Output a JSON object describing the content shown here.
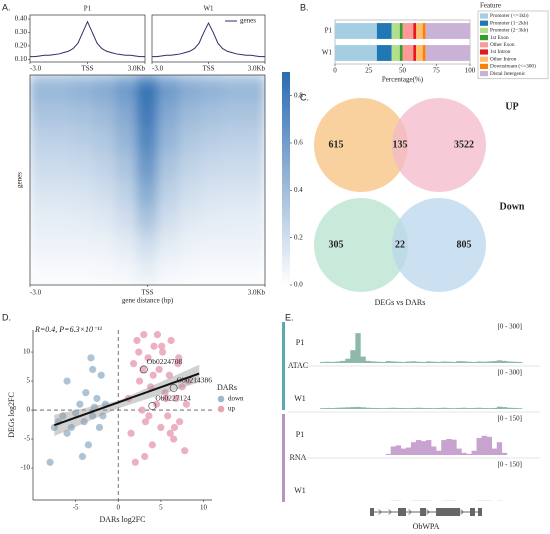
{
  "chart_data": [
    {
      "type": "line",
      "panel_label": "A.",
      "title": "P1",
      "x": [
        -3,
        -2.75,
        -2.5,
        -2.25,
        -2,
        -1.75,
        -1.5,
        -1.25,
        -1,
        -0.75,
        -0.5,
        -0.25,
        0,
        0.25,
        0.5,
        0.75,
        1,
        1.25,
        1.5,
        1.75,
        2,
        2.25,
        2.5,
        2.75,
        3
      ],
      "values": [
        0.12,
        0.12,
        0.125,
        0.13,
        0.13,
        0.135,
        0.14,
        0.15,
        0.16,
        0.18,
        0.22,
        0.3,
        0.38,
        0.3,
        0.22,
        0.18,
        0.16,
        0.15,
        0.14,
        0.135,
        0.13,
        0.13,
        0.125,
        0.12,
        0.12
      ],
      "color": "#2b2f6b",
      "xlim": [
        -3,
        3
      ],
      "xticks": [
        {
          "value": -3,
          "label": "-3.0"
        },
        {
          "value": 0,
          "label": "TSS"
        },
        {
          "value": 3,
          "label": "3.0Kb"
        }
      ],
      "ylim": [
        0.08,
        0.43
      ],
      "yticks": [
        {
          "value": 0.1,
          "label": "0.10"
        },
        {
          "value": 0.2,
          "label": "0.20"
        },
        {
          "value": 0.3,
          "label": "0.30"
        },
        {
          "value": 0.4,
          "label": "0.40"
        }
      ]
    },
    {
      "type": "line",
      "title": "W1",
      "x": [
        -3,
        -2.75,
        -2.5,
        -2.25,
        -2,
        -1.75,
        -1.5,
        -1.25,
        -1,
        -0.75,
        -0.5,
        -0.25,
        0,
        0.25,
        0.5,
        0.75,
        1,
        1.25,
        1.5,
        1.75,
        2,
        2.25,
        2.5,
        2.75,
        3
      ],
      "series": [
        {
          "name": "genes",
          "color": "#2b2f6b",
          "values": [
            0.12,
            0.12,
            0.125,
            0.13,
            0.13,
            0.135,
            0.14,
            0.15,
            0.16,
            0.18,
            0.22,
            0.3,
            0.37,
            0.3,
            0.22,
            0.18,
            0.16,
            0.15,
            0.14,
            0.135,
            0.13,
            0.13,
            0.125,
            0.12,
            0.12
          ]
        }
      ],
      "xlim": [
        -3,
        3
      ],
      "xticks": [
        {
          "value": -3,
          "label": "-3.0"
        },
        {
          "value": 0,
          "label": "TSS"
        },
        {
          "value": 3,
          "label": "3.0Kb"
        }
      ],
      "ylim": [
        0.08,
        0.43
      ]
    },
    {
      "type": "heatmap",
      "xlabel": "gene distance (bp)",
      "ylabel": "genes",
      "xlim": [
        -3,
        3
      ],
      "xticks": [
        {
          "value": -3,
          "label": "-3.0"
        },
        {
          "value": 0,
          "label": "TSS"
        },
        {
          "value": 3,
          "label": "3.0Kb"
        }
      ],
      "matrix": [
        [
          0.45,
          0.45,
          0.48,
          0.52,
          0.62,
          0.85,
          0.62,
          0.52,
          0.48,
          0.45,
          0.45
        ],
        [
          0.36,
          0.36,
          0.38,
          0.42,
          0.52,
          0.8,
          0.52,
          0.42,
          0.38,
          0.36,
          0.36
        ],
        [
          0.28,
          0.28,
          0.3,
          0.34,
          0.45,
          0.72,
          0.45,
          0.34,
          0.3,
          0.28,
          0.28
        ],
        [
          0.22,
          0.22,
          0.23,
          0.27,
          0.36,
          0.62,
          0.36,
          0.27,
          0.23,
          0.22,
          0.22
        ],
        [
          0.16,
          0.16,
          0.17,
          0.2,
          0.28,
          0.5,
          0.28,
          0.2,
          0.17,
          0.16,
          0.16
        ],
        [
          0.11,
          0.11,
          0.12,
          0.14,
          0.2,
          0.36,
          0.2,
          0.14,
          0.12,
          0.11,
          0.11
        ],
        [
          0.07,
          0.07,
          0.07,
          0.08,
          0.12,
          0.2,
          0.12,
          0.08,
          0.07,
          0.07,
          0.07
        ],
        [
          0.03,
          0.03,
          0.03,
          0.04,
          0.05,
          0.1,
          0.05,
          0.04,
          0.03,
          0.03,
          0.03
        ]
      ],
      "colors": [
        "#ffffff",
        "#2a6bb0"
      ],
      "clim": [
        0,
        0.9
      ],
      "cticks": [
        {
          "value": 0,
          "label": "0.0"
        },
        0.2,
        0.4,
        0.6,
        0.8
      ]
    },
    {
      "type": "bar",
      "orientation": "horizontal",
      "stacked": true,
      "panel_label": "B.",
      "categories": [
        "P1",
        "W1"
      ],
      "xlabel": "Percentage(%)",
      "legend_title": "Feature",
      "xlim": [
        0,
        100
      ],
      "xticks": [
        0,
        25,
        50,
        75,
        100
      ],
      "series": [
        {
          "name": "Promoter (<=1kb)",
          "color": "#a6cee3",
          "values": [
            31,
            31
          ]
        },
        {
          "name": "Promoter (1−2kb)",
          "color": "#1f78b4",
          "values": [
            11,
            11
          ]
        },
        {
          "name": "Promoter (2−3kb)",
          "color": "#b2df8a",
          "values": [
            6,
            6
          ]
        },
        {
          "name": "1st Exon",
          "color": "#33a02c",
          "values": [
            2,
            2
          ]
        },
        {
          "name": "Other Exon",
          "color": "#fb9a99",
          "values": [
            8,
            8
          ]
        },
        {
          "name": "1st Intron",
          "color": "#e31a1c",
          "values": [
            2,
            2
          ]
        },
        {
          "name": "Other Intron",
          "color": "#fdbf6f",
          "values": [
            5,
            5
          ]
        },
        {
          "name": "Downstream (<=300)",
          "color": "#ff7f00",
          "values": [
            2,
            2
          ]
        },
        {
          "name": "Distal Intergenic",
          "color": "#cab2d6",
          "values": [
            33,
            33
          ]
        }
      ]
    },
    {
      "type": "venn",
      "panel_label": "C.",
      "caption": "DEGs vs DARs",
      "sets": [
        {
          "title": "UP",
          "values": [
            615,
            135,
            3522
          ],
          "colors": [
            "#f7c98d",
            "#f3b9c9"
          ]
        },
        {
          "title": "Down",
          "values": [
            305,
            22,
            805
          ],
          "colors": [
            "#bfe5d4",
            "#b9d5ec"
          ]
        }
      ]
    },
    {
      "type": "scatter",
      "panel_label": "D.",
      "annotation": "R=0.4, P=6.3×10⁻¹¹",
      "xlabel": "DARs log2FC",
      "ylabel": "DEGs log2FC",
      "legend_title": "DARs",
      "xlim": [
        -10,
        11
      ],
      "xticks": [
        -5,
        0,
        5,
        10
      ],
      "ylim": [
        -15.5,
        13.8
      ],
      "yticks": [
        -10,
        -5,
        0,
        5,
        10
      ],
      "reference_lines": {
        "x": 0,
        "y": 0
      },
      "series": [
        {
          "name": "down",
          "color": "#9fb8cf",
          "x": [
            -8,
            -7,
            -6.5,
            -6,
            -5.5,
            -5,
            -4.5,
            -4,
            -3.8,
            -3.5,
            -3,
            -3,
            -2.8,
            -2.5,
            -2.2,
            -2,
            -1.8,
            -1.5,
            -6,
            -3.2,
            -7.5,
            -4.2
          ],
          "y": [
            -9,
            -2,
            -1,
            5,
            -3,
            -0.5,
            1,
            -2,
            3,
            -6,
            -1,
            7,
            0.5,
            2,
            -3,
            6,
            -1,
            1,
            -4,
            9,
            -3,
            -8
          ]
        },
        {
          "name": "up",
          "color": "#e7a3b5",
          "x": [
            1.2,
            1.5,
            1.8,
            2,
            2.2,
            2.5,
            2.8,
            3,
            3.2,
            3.5,
            3.8,
            4,
            4.2,
            4.5,
            4.8,
            5,
            5.2,
            5.5,
            5.8,
            6,
            6.2,
            6.5,
            6.8,
            7,
            7.2,
            7.5,
            7.8,
            8,
            2.4,
            3.1,
            4.1,
            5.1,
            6.1,
            7.1,
            3.6,
            4.6,
            5.6,
            6.6,
            2.9,
            8.2
          ],
          "y": [
            2,
            -4,
            8,
            -9,
            12,
            5,
            0,
            13,
            -2,
            9,
            4,
            -6,
            11,
            1,
            7,
            -3,
            10,
            3,
            -1,
            6,
            12,
            -5,
            2,
            8,
            -2,
            4,
            -7,
            1,
            10,
            -8,
            6,
            11,
            -4,
            9,
            -1,
            13,
            2,
            -3,
            7,
            5
          ]
        }
      ],
      "fit": {
        "x": [
          -7.5,
          9.5
        ],
        "y": [
          -2.6,
          6.3
        ]
      },
      "band": {
        "x": [
          -7.5,
          0,
          9.5
        ],
        "lower": [
          -4.5,
          0.3,
          4.8
        ],
        "upper": [
          -0.8,
          1.6,
          7.8
        ]
      },
      "labels": [
        {
          "text": "Ob0224708",
          "x": 3,
          "y": 7
        },
        {
          "text": "Ob0214386",
          "x": 6.5,
          "y": 3.8
        },
        {
          "text": "Ob0227124",
          "x": 4,
          "y": 0.7
        }
      ]
    },
    {
      "type": "tracks",
      "panel_label": "E.",
      "gene": "ObWPA",
      "groups": [
        {
          "name": "ATAC",
          "color": "#5aa9b3",
          "fill": "#8fb8ad",
          "tracks": [
            {
              "name": "P1",
              "range_label": "[0 - 300]",
              "ylim": [
                0,
                300
              ],
              "values": [
                10,
                12,
                10,
                14,
                20,
                40,
                120,
                280,
                60,
                20,
                15,
                12,
                10,
                18,
                15,
                12,
                10,
                14,
                16,
                12,
                10,
                15,
                12,
                10,
                14,
                12,
                10,
                18,
                16,
                12,
                10,
                14,
                12,
                15,
                18,
                25,
                20,
                14,
                12,
                10
              ]
            },
            {
              "name": "W1",
              "range_label": "[0 - 300]",
              "ylim": [
                0,
                300
              ],
              "values": [
                8,
                10,
                9,
                12,
                14,
                16,
                18,
                20,
                16,
                12,
                10,
                9,
                8,
                10,
                12,
                10,
                9,
                8,
                10,
                12,
                10,
                9,
                8,
                10,
                12,
                9,
                8,
                10,
                12,
                9,
                10,
                12,
                9,
                8,
                10,
                22,
                18,
                12,
                10,
                8
              ]
            }
          ]
        },
        {
          "name": "RNA",
          "color": "#b694c4",
          "fill": "#c9a3cf",
          "tracks": [
            {
              "name": "P1",
              "range_label": "[0 - 150]",
              "ylim": [
                0,
                150
              ],
              "values": [
                0,
                0,
                0,
                0,
                0,
                0,
                0,
                0,
                0,
                0,
                0,
                0,
                0,
                5,
                40,
                45,
                30,
                35,
                60,
                70,
                65,
                70,
                40,
                20,
                70,
                75,
                72,
                30,
                10,
                5,
                20,
                80,
                90,
                85,
                30,
                60,
                10,
                0,
                0,
                0
              ]
            },
            {
              "name": "W1",
              "range_label": "[0 - 150]",
              "ylim": [
                0,
                150
              ],
              "values": [
                0,
                0,
                0,
                0,
                0,
                0,
                0,
                0,
                0,
                0,
                0,
                0,
                0,
                0,
                1,
                1,
                0,
                0,
                1,
                1,
                1,
                1,
                0,
                0,
                1,
                1,
                1,
                0,
                0,
                0,
                0,
                1,
                1,
                1,
                0,
                1,
                0,
                0,
                0,
                0
              ]
            }
          ]
        }
      ]
    }
  ]
}
